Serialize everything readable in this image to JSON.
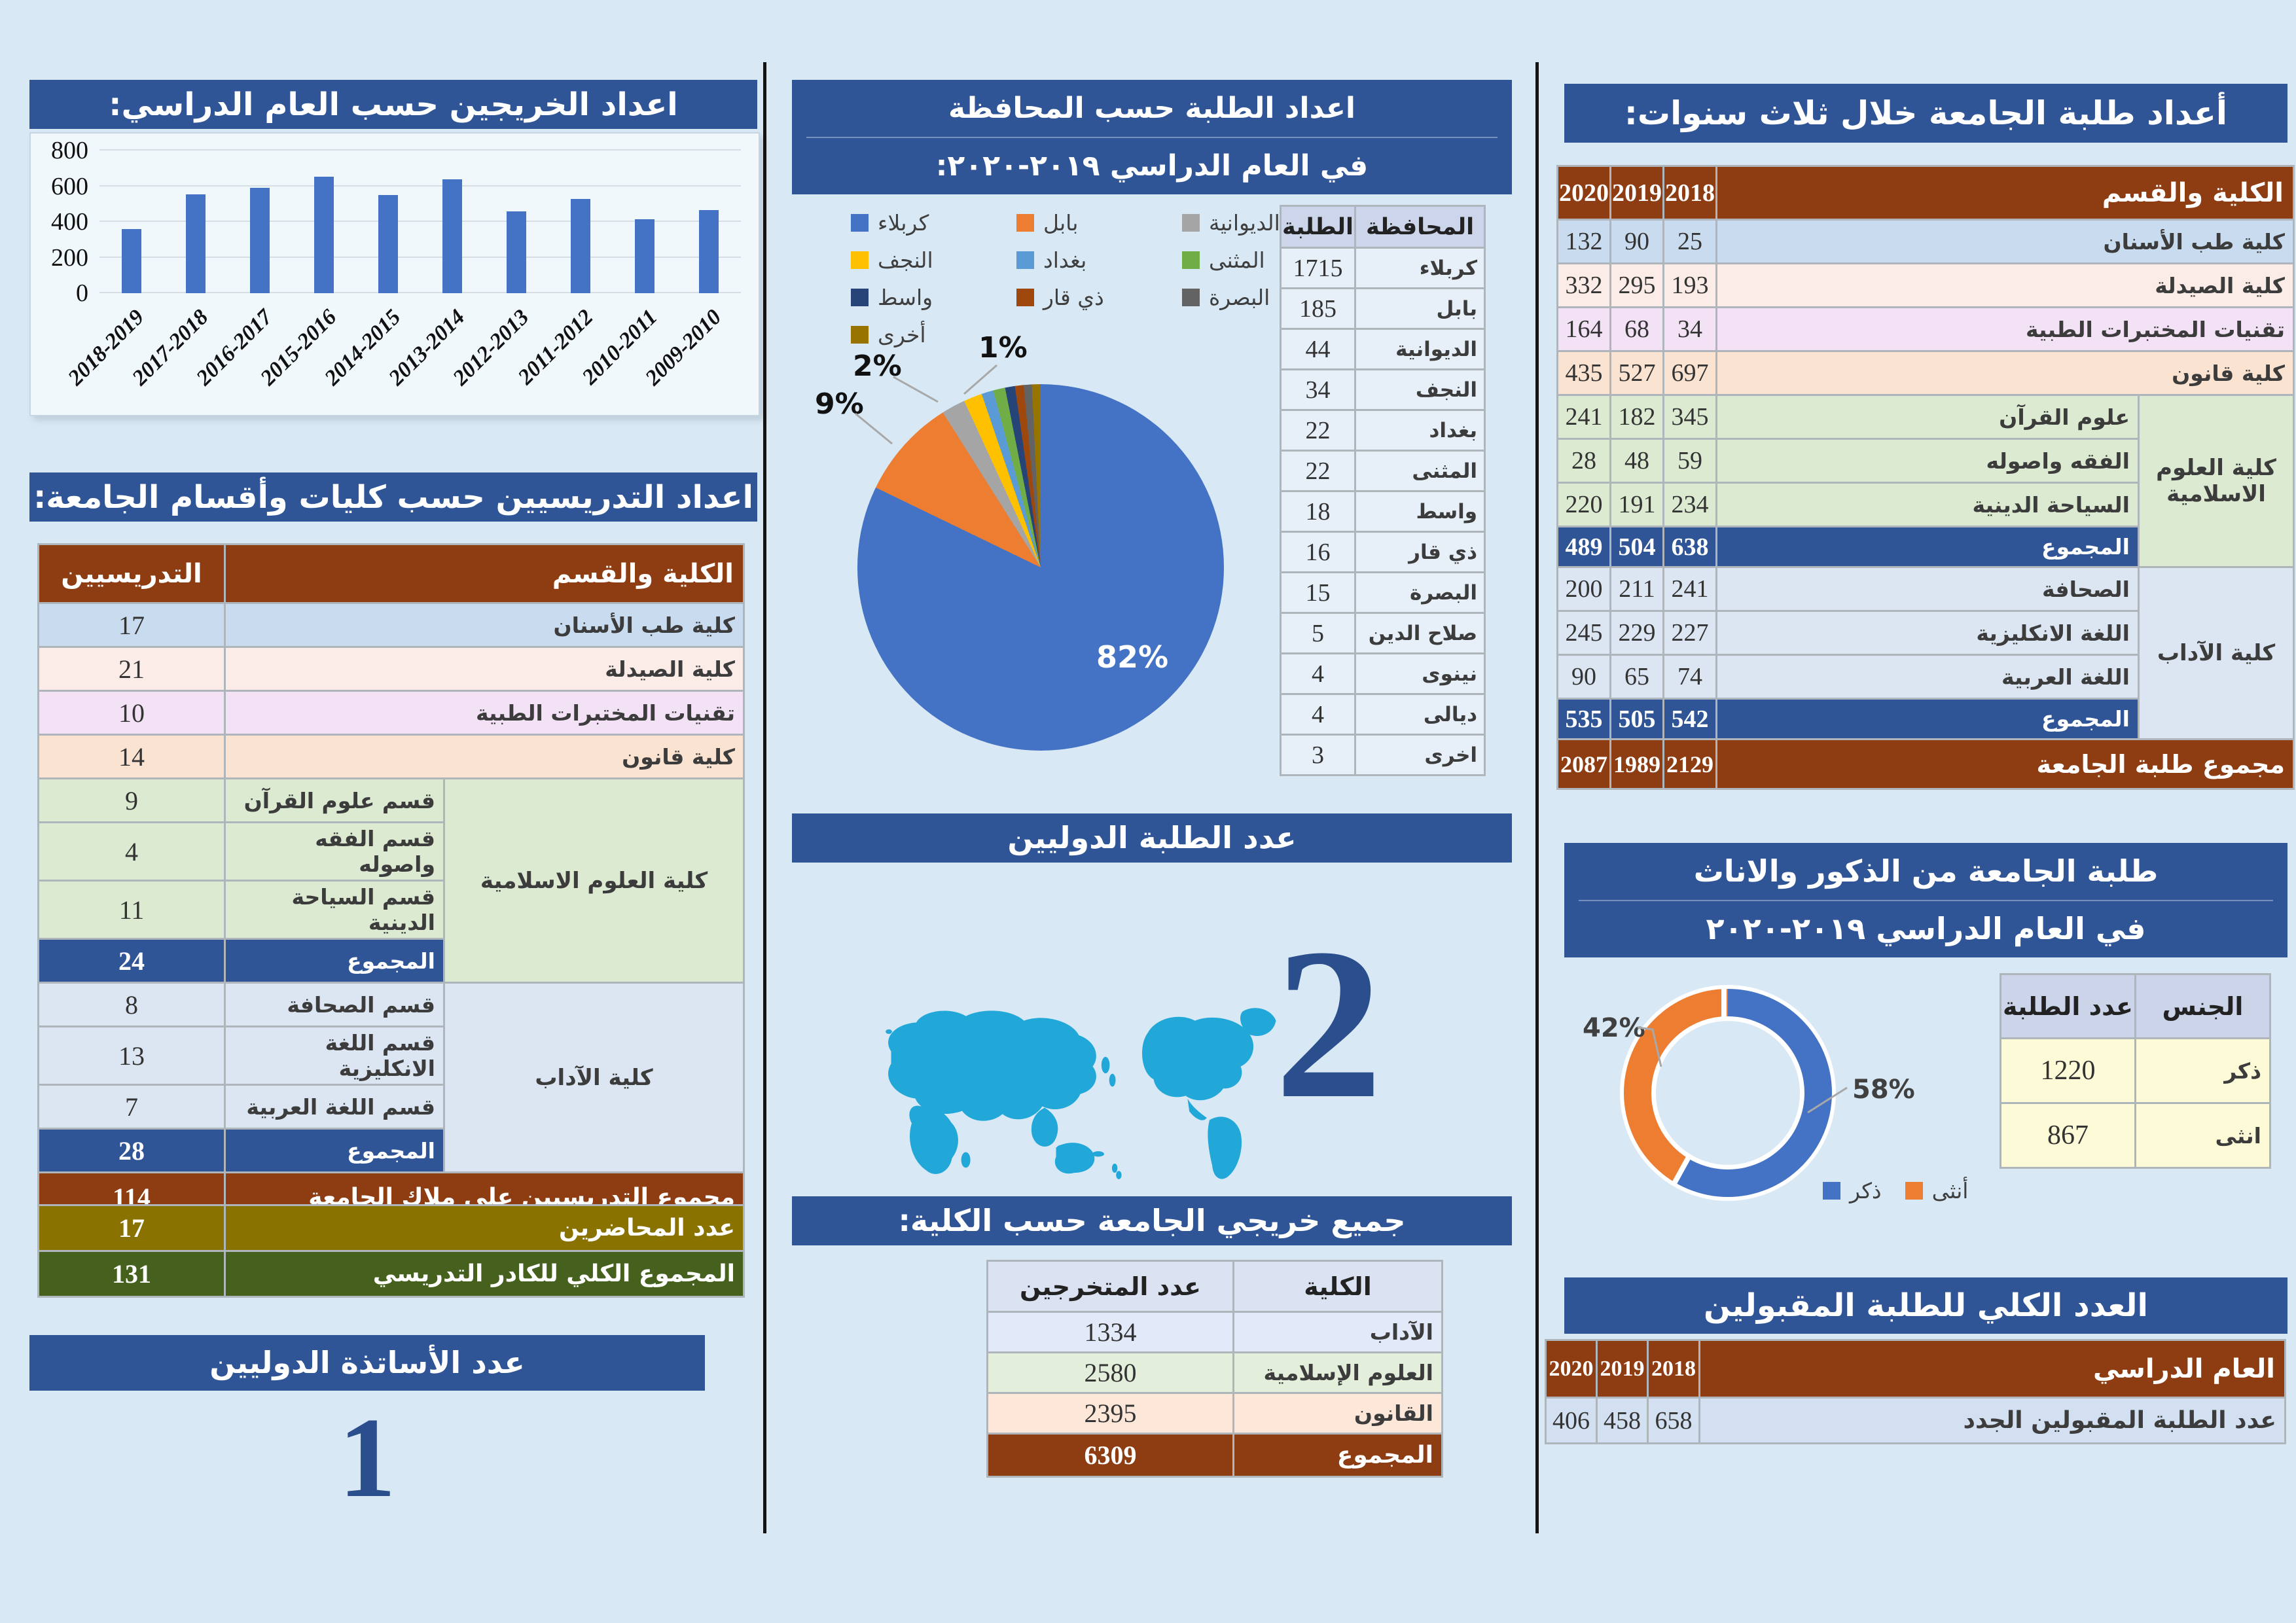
{
  "titles": {
    "graduates_by_year": "اعداد الخريجين حسب العام الدراسي:",
    "staff": "اعداد التدريسيين حسب كليات وأقسام الجامعة:",
    "intl_professors": "عدد الأساتذة الدوليين",
    "students_by_gov_line1": "اعداد الطلبة حسب المحافظة",
    "students_by_gov_line2": "في العام الدراسي ٢٠١٩-٢٠٢٠:",
    "intl_students": "عدد الطلبة الدوليين",
    "grads_by_college": "جميع خريجي الجامعة حسب الكلية:",
    "three_year": "أعداد طلبة الجامعة خلال ثلاث سنوات:",
    "gender_line1": "طلبة الجامعة من الذكور والاناث",
    "gender_line2": "في العام الدراسي ٢٠١٩-٢٠٢٠",
    "accepted": "العدد الكلي للطلبة المقبولين"
  },
  "big_numbers": {
    "intl_professors": "1",
    "intl_students": "2"
  },
  "staff": {
    "header": {
      "count": "التدريسيين",
      "name": "الكلية والقسم"
    },
    "simple": [
      {
        "name": "كلية طب الأسنان",
        "count": "17"
      },
      {
        "name": "كلية الصيدلة",
        "count": "21"
      },
      {
        "name": "تقنيات المختبرات الطبية",
        "count": "10"
      },
      {
        "name": "كلية قانون",
        "count": "14"
      }
    ],
    "islamic": {
      "group": "كلية العلوم الاسلامية",
      "rows": [
        {
          "name": "قسم علوم القرآن",
          "count": "9"
        },
        {
          "name": "قسم الفقه واصوله",
          "count": "4"
        },
        {
          "name": "قسم السياحة الدينية",
          "count": "11"
        }
      ],
      "total_label": "المجموع",
      "total": "24"
    },
    "arts": {
      "group": "كلية الآداب",
      "rows": [
        {
          "name": "قسم الصحافة",
          "count": "8"
        },
        {
          "name": "قسم اللغة الانكليزية",
          "count": "13"
        },
        {
          "name": "قسم اللغة العربية",
          "count": "7"
        }
      ],
      "total_label": "المجموع",
      "total": "28"
    },
    "grand": {
      "label": "مجموع التدريسيين على ملاك الجامعة",
      "count": "114"
    },
    "lecturers": {
      "label": "عدد المحاضرين",
      "count": "17"
    },
    "overall": {
      "label": "المجموع الكلي للكادر التدريسي",
      "count": "131"
    }
  },
  "three_year": {
    "header": {
      "name": "الكلية والقسم",
      "y2018": "2018",
      "y2019": "2019",
      "y2020": "2020"
    },
    "simple": [
      {
        "name": "كلية طب الأسنان",
        "y2018": "25",
        "y2019": "90",
        "y2020": "132"
      },
      {
        "name": "كلية الصيدلة",
        "y2018": "193",
        "y2019": "295",
        "y2020": "332"
      },
      {
        "name": "تقنيات المختبرات الطبية",
        "y2018": "34",
        "y2019": "68",
        "y2020": "164"
      },
      {
        "name": "كلية قانون",
        "y2018": "697",
        "y2019": "527",
        "y2020": "435"
      }
    ],
    "islamic": {
      "group": "كلية العلوم الاسلامية",
      "rows": [
        {
          "name": "علوم القرآن",
          "y2018": "345",
          "y2019": "182",
          "y2020": "241"
        },
        {
          "name": "الفقه واصوله",
          "y2018": "59",
          "y2019": "48",
          "y2020": "28"
        },
        {
          "name": "السياحة الدينية",
          "y2018": "234",
          "y2019": "191",
          "y2020": "220"
        }
      ],
      "total_label": "المجموع",
      "t2018": "638",
      "t2019": "504",
      "t2020": "489"
    },
    "arts": {
      "group": "كلية الآداب",
      "rows": [
        {
          "name": "الصحافة",
          "y2018": "241",
          "y2019": "211",
          "y2020": "200"
        },
        {
          "name": "اللغة الانكليزية",
          "y2018": "227",
          "y2019": "229",
          "y2020": "245"
        },
        {
          "name": "اللغة العربية",
          "y2018": "74",
          "y2019": "65",
          "y2020": "90"
        }
      ],
      "total_label": "المجموع",
      "t2018": "542",
      "t2019": "505",
      "t2020": "535"
    },
    "grand": {
      "label": "مجموع طلبة الجامعة",
      "y2018": "2129",
      "y2019": "1989",
      "y2020": "2087"
    }
  },
  "gov": {
    "header": {
      "students": "الطلبة",
      "name": "المحافظة"
    },
    "rows": [
      {
        "name": "كربلاء",
        "students": "1715"
      },
      {
        "name": "بابل",
        "students": "185"
      },
      {
        "name": "الديوانية",
        "students": "44"
      },
      {
        "name": "النجف",
        "students": "34"
      },
      {
        "name": "بغداد",
        "students": "22"
      },
      {
        "name": "المثنى",
        "students": "22"
      },
      {
        "name": "واسط",
        "students": "18"
      },
      {
        "name": "ذي قار",
        "students": "16"
      },
      {
        "name": "البصرة",
        "students": "15"
      },
      {
        "name": "صلاح الدين",
        "students": "5"
      },
      {
        "name": "نينوى",
        "students": "4"
      },
      {
        "name": "ديالى",
        "students": "4"
      },
      {
        "name": "اخرى",
        "students": "3"
      }
    ]
  },
  "grads": {
    "header": {
      "count": "عدد المتخرجين",
      "name": "الكلية"
    },
    "rows": [
      {
        "name": "الآداب",
        "count": "1334"
      },
      {
        "name": "العلوم الإسلامية",
        "count": "2580"
      },
      {
        "name": "القانون",
        "count": "2395"
      }
    ],
    "total_label": "المجموع",
    "total": "6309"
  },
  "gender": {
    "header": {
      "gender": "الجنس",
      "count": "عدد الطلبة"
    },
    "rows": [
      {
        "gender": "ذكر",
        "count": "1220"
      },
      {
        "gender": "انثى",
        "count": "867"
      }
    ]
  },
  "accepted": {
    "header": {
      "name": "العام الدراسي",
      "y2018": "2018",
      "y2019": "2019",
      "y2020": "2020"
    },
    "row": {
      "label": "عدد الطلبة المقبولين الجدد",
      "y2018": "658",
      "y2019": "458",
      "y2020": "406"
    }
  },
  "colors": {
    "accent_blue": "#2f5597",
    "header_brown": "#8e3c12",
    "page_bg": "#d8e9f5",
    "male_blue": "#4472c4",
    "female_orange": "#ed7d31",
    "map_teal": "#22a7d9"
  },
  "chart_data": [
    {
      "type": "bar",
      "title": "اعداد الخريجين حسب العام الدراسي:",
      "categories": [
        "2018-2019",
        "2017-2018",
        "2016-2017",
        "2015-2016",
        "2014-2015",
        "2013-2014",
        "2012-2013",
        "2011-2012",
        "2010-2011",
        "2009-2010"
      ],
      "values": [
        360,
        555,
        590,
        655,
        550,
        640,
        460,
        530,
        415,
        465
      ],
      "xlabel": "",
      "ylabel": "",
      "ylim": [
        0,
        800
      ],
      "yticks": [
        0,
        200,
        400,
        600,
        800
      ],
      "bar_color": "#4472c4",
      "grid": true,
      "legend_position": "none"
    },
    {
      "type": "pie",
      "title": "اعداد الطلبة حسب المحافظة في العام الدراسي ٢٠١٩-٢٠٢٠:",
      "labels": [
        "كربلاء",
        "بابل",
        "الديوانية",
        "النجف",
        "بغداد",
        "المثنى",
        "واسط",
        "ذي قار",
        "البصرة",
        "أخرى"
      ],
      "values": [
        1715,
        185,
        44,
        34,
        22,
        22,
        18,
        16,
        15,
        16
      ],
      "colors": [
        "#4472c4",
        "#ed7d31",
        "#a5a5a5",
        "#ffc000",
        "#5b9bd5",
        "#70ad47",
        "#264478",
        "#9e480e",
        "#636363",
        "#997300"
      ],
      "percent_labels": [
        "82%",
        "9%",
        "2%",
        "1%"
      ],
      "legend_position": "top"
    },
    {
      "type": "donut",
      "title": "طلبة الجامعة من الذكور والاناث في العام الدراسي ٢٠١٩-٢٠٢٠",
      "labels": [
        "ذكر",
        "أنثى"
      ],
      "values": [
        1220,
        867
      ],
      "colors": [
        "#4472c4",
        "#ed7d31"
      ],
      "percent_labels": [
        "58%",
        "42%"
      ],
      "legend_position": "bottom"
    }
  ]
}
